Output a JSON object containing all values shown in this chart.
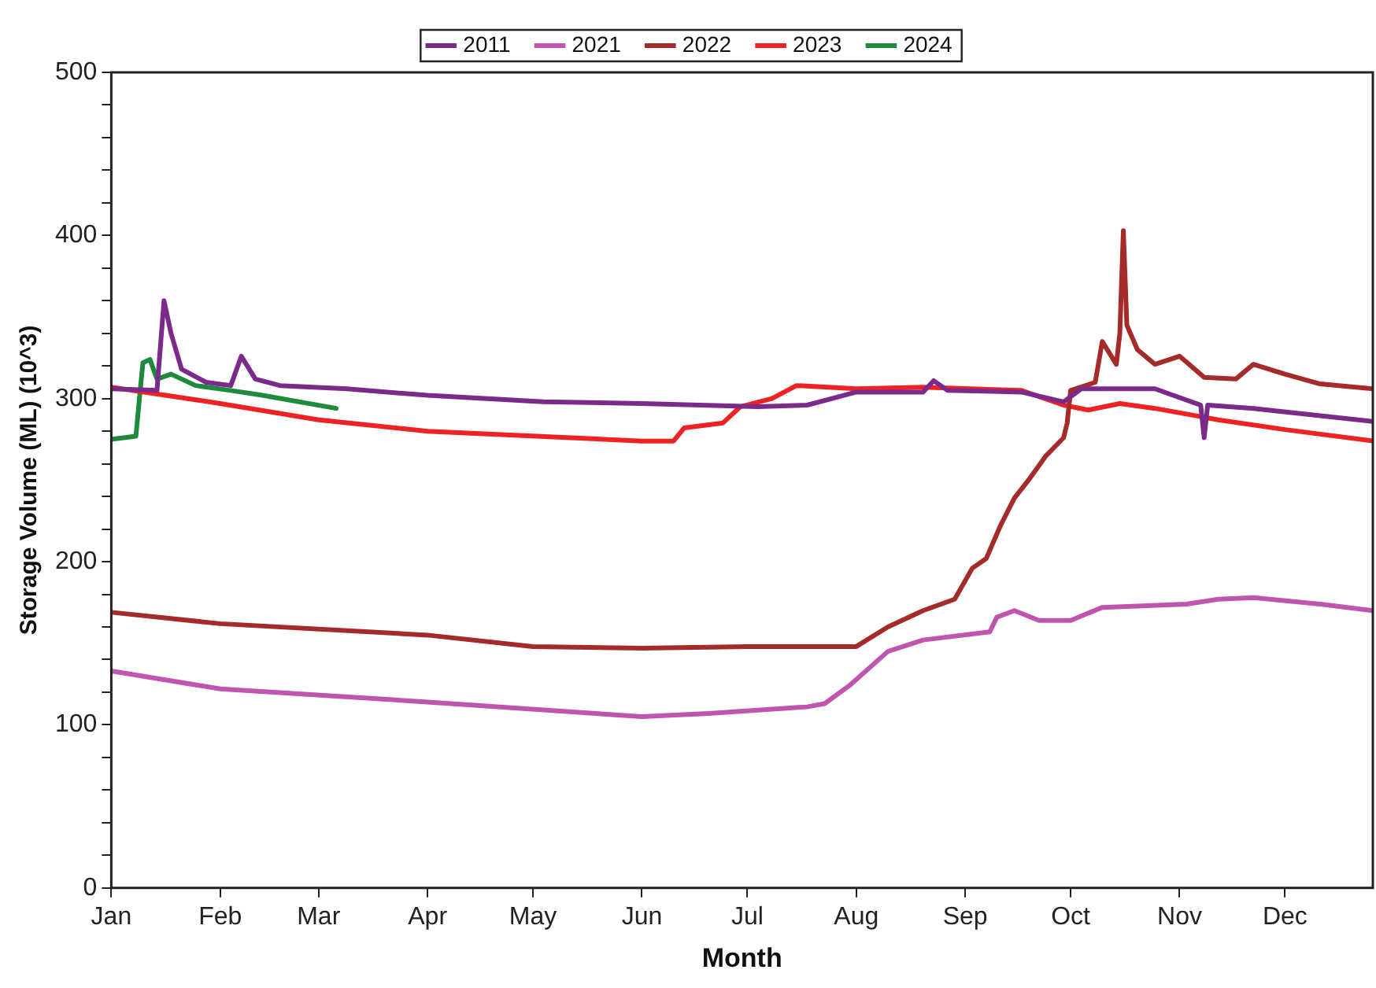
{
  "chart_data": {
    "type": "line",
    "xlabel": "Month",
    "ylabel": "Storage Volume (ML) (10^3)",
    "legend": "top",
    "grid": false,
    "marker": "none",
    "line_style": "solid",
    "xlim": [
      "--01-01",
      "--12-26"
    ],
    "xticks": [
      {
        "value": "--01-01",
        "label": "Jan"
      },
      {
        "value": "--02-01",
        "label": "Feb"
      },
      {
        "value": "--03-01",
        "label": "Mar"
      },
      {
        "value": "--04-01",
        "label": "Apr"
      },
      {
        "value": "--05-01",
        "label": "May"
      },
      {
        "value": "--06-01",
        "label": "Jun"
      },
      {
        "value": "--07-01",
        "label": "Jul"
      },
      {
        "value": "--08-01",
        "label": "Aug"
      },
      {
        "value": "--09-01",
        "label": "Sep"
      },
      {
        "value": "--10-01",
        "label": "Oct"
      },
      {
        "value": "--11-01",
        "label": "Nov"
      },
      {
        "value": "--12-01",
        "label": "Dec"
      }
    ],
    "ylim": [
      0,
      500
    ],
    "yticks": [
      0,
      {
        "value": 20,
        "label": null
      },
      {
        "value": 40,
        "label": null
      },
      {
        "value": 60,
        "label": null
      },
      {
        "value": 80,
        "label": null
      },
      100,
      {
        "value": 120,
        "label": null
      },
      {
        "value": 140,
        "label": null
      },
      {
        "value": 160,
        "label": null
      },
      {
        "value": 180,
        "label": null
      },
      200,
      {
        "value": 220,
        "label": null
      },
      {
        "value": 240,
        "label": null
      },
      {
        "value": 260,
        "label": null
      },
      {
        "value": 280,
        "label": null
      },
      300,
      {
        "value": 320,
        "label": null
      },
      {
        "value": 340,
        "label": null
      },
      {
        "value": 360,
        "label": null
      },
      {
        "value": 380,
        "label": null
      },
      400,
      {
        "value": 420,
        "label": null
      },
      {
        "value": 440,
        "label": null
      },
      {
        "value": 460,
        "label": null
      },
      {
        "value": 480,
        "label": null
      },
      500
    ],
    "series": [
      {
        "name": "2011",
        "color": "#7b2a8c",
        "x": [
          "--01-01",
          "--01-14",
          "--01-16",
          "--01-18",
          "--01-21",
          "--01-28",
          "--02-04",
          "--02-07",
          "--02-11",
          "--02-18",
          "--03-09",
          "--04-01",
          "--05-04",
          "--06-01",
          "--07-04",
          "--07-18",
          "--08-01",
          "--08-20",
          "--08-23",
          "--08-27",
          "--09-17",
          "--09-29",
          "--10-04",
          "--10-25",
          "--11-07",
          "--11-08",
          "--11-09",
          "--11-22",
          "--12-26"
        ],
        "values": [
          306,
          305,
          360,
          340,
          318,
          310,
          308,
          326,
          312,
          308,
          306,
          302,
          298,
          297,
          295,
          296,
          304,
          304,
          311,
          305,
          304,
          298,
          306,
          306,
          296,
          276,
          296,
          294,
          286
        ]
      },
      {
        "name": "2021",
        "color": "#c055b0",
        "x": [
          "--01-01",
          "--02-01",
          "--04-01",
          "--06-01",
          "--06-20",
          "--07-18",
          "--07-23",
          "--07-30",
          "--08-10",
          "--08-20",
          "--09-08",
          "--09-10",
          "--09-15",
          "--09-22",
          "--10-01",
          "--10-10",
          "--11-03",
          "--11-12",
          "--11-22",
          "--12-11",
          "--12-26"
        ],
        "values": [
          133,
          122,
          114,
          105,
          107,
          111,
          113,
          124,
          145,
          152,
          157,
          166,
          170,
          164,
          164,
          172,
          174,
          177,
          178,
          174,
          170
        ]
      },
      {
        "name": "2022",
        "color": "#a52a2a",
        "x": [
          "--01-01",
          "--02-01",
          "--04-01",
          "--05-01",
          "--06-01",
          "--07-01",
          "--08-01",
          "--08-10",
          "--08-20",
          "--08-29",
          "--09-03",
          "--09-07",
          "--09-11",
          "--09-15",
          "--09-19",
          "--09-24",
          "--09-29",
          "--09-30",
          "--10-01",
          "--10-08",
          "--10-10",
          "--10-14",
          "--10-15",
          "--10-16",
          "--10-17",
          "--10-20",
          "--10-25",
          "--11-01",
          "--11-08",
          "--11-17",
          "--11-22",
          "--12-01",
          "--12-11",
          "--12-26"
        ],
        "values": [
          169,
          162,
          155,
          148,
          147,
          148,
          148,
          160,
          170,
          177,
          196,
          202,
          222,
          239,
          250,
          265,
          276,
          285,
          305,
          310,
          335,
          321,
          340,
          403,
          345,
          330,
          321,
          326,
          313,
          312,
          321,
          315,
          309,
          306
        ]
      },
      {
        "name": "2023",
        "color": "#ee2222",
        "x": [
          "--01-01",
          "--02-01",
          "--03-01",
          "--04-01",
          "--06-01",
          "--06-10",
          "--06-13",
          "--06-24",
          "--06-29",
          "--07-08",
          "--07-15",
          "--08-01",
          "--08-20",
          "--09-17",
          "--09-29",
          "--10-06",
          "--10-15",
          "--10-25",
          "--11-12",
          "--12-01",
          "--12-26"
        ],
        "values": [
          307,
          297,
          287,
          280,
          274,
          274,
          282,
          285,
          295,
          300,
          308,
          306,
          307,
          305,
          296,
          293,
          297,
          294,
          287,
          281,
          274
        ]
      },
      {
        "name": "2024",
        "color": "#1e8a3c",
        "x": [
          "--01-01",
          "--01-08",
          "--01-09",
          "--01-10",
          "--01-12",
          "--01-14",
          "--01-18",
          "--01-25",
          "--02-04",
          "--02-13",
          "--03-06"
        ],
        "values": [
          275,
          277,
          300,
          322,
          324,
          312,
          315,
          308,
          305,
          302,
          294
        ]
      }
    ]
  }
}
